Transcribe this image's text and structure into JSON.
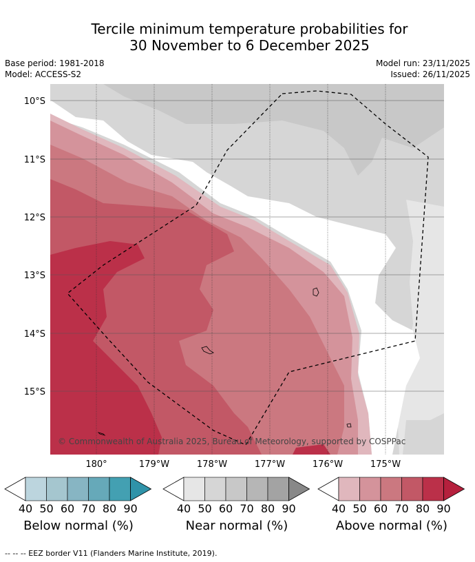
{
  "title": {
    "line1": "Tercile minimum temperature probabilities for",
    "line2": "30 November to 6 December 2025"
  },
  "meta": {
    "base_period": "Base period: 1981-2018",
    "model": "Model: ACCESS-S2",
    "model_run": "Model run: 23/11/2025",
    "issued": "Issued: 26/11/2025"
  },
  "map": {
    "lat_labels": [
      "10°S",
      "11°S",
      "12°S",
      "13°S",
      "14°S",
      "15°S"
    ],
    "lon_labels": [
      "180°",
      "179°W",
      "178°W",
      "177°W",
      "176°W",
      "175°W"
    ],
    "copyright": "© Commonwealth of Australia 2025, Bureau of Meteorology, supported by COSPPac"
  },
  "colorbars": [
    {
      "label": "Below normal (%)",
      "colors": [
        "#ffffff",
        "#bcd5de",
        "#a5c6cf",
        "#87b5c3",
        "#66a9b9",
        "#43a0b2",
        "#2f93a9"
      ],
      "ticks": [
        "40",
        "50",
        "60",
        "70",
        "80",
        "90"
      ]
    },
    {
      "label": "Near normal (%)",
      "colors": [
        "#ffffff",
        "#e6e6e6",
        "#d6d6d6",
        "#c8c8c8",
        "#b6b6b6",
        "#a3a3a3",
        "#888888"
      ],
      "ticks": [
        "40",
        "50",
        "60",
        "70",
        "80",
        "90"
      ]
    },
    {
      "label": "Above normal (%)",
      "colors": [
        "#ffffff",
        "#e0b7bd",
        "#d4939b",
        "#cb7880",
        "#c25866",
        "#bb3049",
        "#b5203d"
      ],
      "ticks": [
        "40",
        "50",
        "60",
        "70",
        "80",
        "90"
      ]
    }
  ],
  "footer": "--  --  -- EEZ border V11 (Flanders Marine Institute, 2019)."
}
